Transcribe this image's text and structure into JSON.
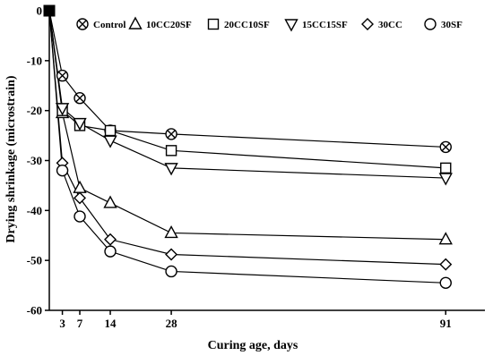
{
  "chart_data": {
    "type": "line",
    "xlabel": "Curing age, days",
    "ylabel": "Drying shrinkage (microstrain)",
    "x": [
      0,
      3,
      7,
      14,
      28,
      91
    ],
    "xticks": [
      3,
      7,
      14,
      28,
      91
    ],
    "xlim": [
      0,
      100
    ],
    "ylim": [
      -60,
      0
    ],
    "yticks": [
      0,
      -10,
      -20,
      -30,
      -40,
      -50,
      -60
    ],
    "grid": false,
    "legend_position": "top",
    "series": [
      {
        "name": "Control",
        "marker": "circle-x",
        "values": [
          0,
          -13,
          -17.5,
          -24,
          -24.7,
          -27.3
        ]
      },
      {
        "name": "10CC20SF",
        "marker": "triangle-up",
        "values": [
          0,
          -20.5,
          -35.5,
          -38.5,
          -44.5,
          -45.8
        ]
      },
      {
        "name": "20CC10SF",
        "marker": "square",
        "values": [
          0,
          -20,
          -23,
          -24,
          -28,
          -31.5
        ]
      },
      {
        "name": "15CC15SF",
        "marker": "triangle-down",
        "values": [
          0,
          -19.5,
          -22.5,
          -26,
          -31.5,
          -33.5
        ]
      },
      {
        "name": "30CC",
        "marker": "diamond",
        "values": [
          0,
          -30.5,
          -37.5,
          -45.8,
          -48.8,
          -50.8
        ]
      },
      {
        "name": "30SF",
        "marker": "circle",
        "values": [
          0,
          -32,
          -41.2,
          -48.2,
          -52.2,
          -54.5
        ]
      }
    ]
  }
}
